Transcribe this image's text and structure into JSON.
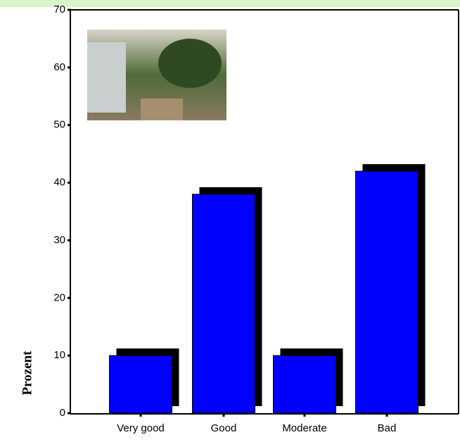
{
  "chart_data": {
    "type": "bar",
    "y_label": "Prozent",
    "categories": [
      "Very good",
      "Good",
      "Moderate",
      "Bad"
    ],
    "values": [
      10,
      38,
      10,
      42
    ],
    "color": "#0000ff",
    "ylim": [
      0,
      70
    ],
    "yticks": [
      0,
      10,
      20,
      30,
      40,
      50,
      60,
      70
    ],
    "grid": false
  }
}
